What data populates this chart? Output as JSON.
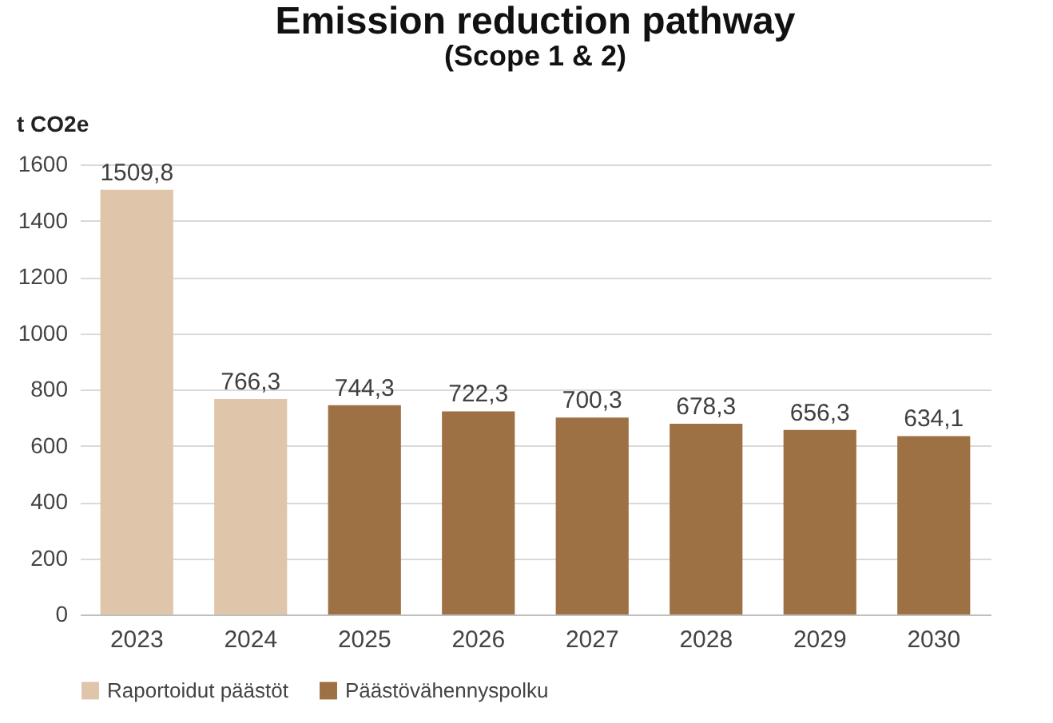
{
  "chart_data": {
    "type": "bar",
    "title": "Emission reduction pathway",
    "subtitle": "(Scope 1 & 2)",
    "ylabel": "t CO2e",
    "categories": [
      "2023",
      "2024",
      "2025",
      "2026",
      "2027",
      "2028",
      "2029",
      "2030"
    ],
    "series": [
      {
        "name": "Raportoidut päästöt",
        "color": "#dfc5aa",
        "values": [
          1509.8,
          766.3,
          null,
          null,
          null,
          null,
          null,
          null
        ],
        "value_labels": [
          "1509,8",
          "766,3",
          null,
          null,
          null,
          null,
          null,
          null
        ]
      },
      {
        "name": "Päästövähennyspolku",
        "color": "#9e7145",
        "values": [
          null,
          null,
          744.3,
          722.3,
          700.3,
          678.3,
          656.3,
          634.1
        ],
        "value_labels": [
          null,
          null,
          "744,3",
          "722,3",
          "700,3",
          "678,3",
          "656,3",
          "634,1"
        ]
      }
    ],
    "ylim": [
      0,
      1600
    ],
    "yticks": [
      0,
      200,
      400,
      600,
      800,
      1000,
      1200,
      1400,
      1600
    ],
    "grid": "y",
    "legend": "bottom"
  }
}
